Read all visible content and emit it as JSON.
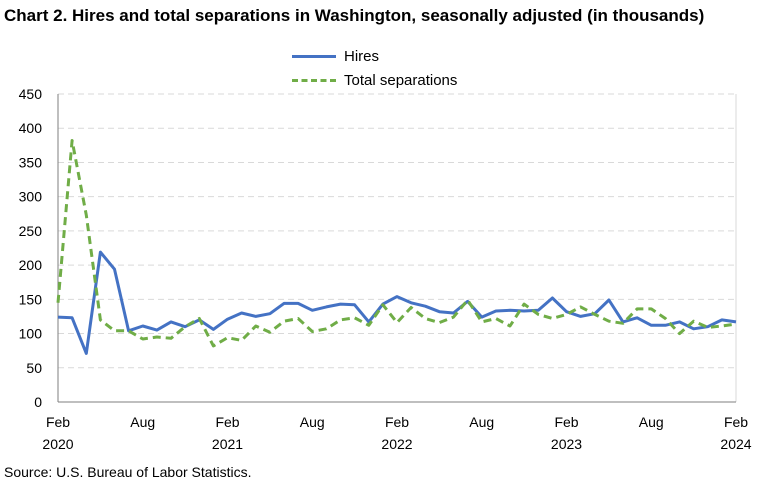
{
  "chart_data": {
    "type": "line",
    "title": "Chart 2. Hires and total separations in Washington, seasonally adjusted (in thousands)",
    "xlabel": "",
    "ylabel": "",
    "ylim": [
      0,
      450
    ],
    "yticks": [
      0,
      50,
      100,
      150,
      200,
      250,
      300,
      350,
      400,
      450
    ],
    "grid": true,
    "legend_position": "top-center",
    "x_tick_labels": [
      {
        "month": "Feb",
        "year": "2020"
      },
      {
        "month": "Aug",
        "year": ""
      },
      {
        "month": "Feb",
        "year": "2021"
      },
      {
        "month": "Aug",
        "year": ""
      },
      {
        "month": "Feb",
        "year": "2022"
      },
      {
        "month": "Aug",
        "year": ""
      },
      {
        "month": "Feb",
        "year": "2023"
      },
      {
        "month": "Aug",
        "year": ""
      },
      {
        "month": "Feb",
        "year": "2024"
      }
    ],
    "x": [
      "2020-02",
      "2020-03",
      "2020-04",
      "2020-05",
      "2020-06",
      "2020-07",
      "2020-08",
      "2020-09",
      "2020-10",
      "2020-11",
      "2020-12",
      "2021-01",
      "2021-02",
      "2021-03",
      "2021-04",
      "2021-05",
      "2021-06",
      "2021-07",
      "2021-08",
      "2021-09",
      "2021-10",
      "2021-11",
      "2021-12",
      "2022-01",
      "2022-02",
      "2022-03",
      "2022-04",
      "2022-05",
      "2022-06",
      "2022-07",
      "2022-08",
      "2022-09",
      "2022-10",
      "2022-11",
      "2022-12",
      "2023-01",
      "2023-02",
      "2023-03",
      "2023-04",
      "2023-05",
      "2023-06",
      "2023-07",
      "2023-08",
      "2023-09",
      "2023-10",
      "2023-11",
      "2023-12",
      "2024-01",
      "2024-02"
    ],
    "series": [
      {
        "name": "Hires",
        "color": "#4472c4",
        "style": "solid",
        "values": [
          124,
          123,
          71,
          219,
          194,
          104,
          111,
          105,
          117,
          110,
          120,
          106,
          121,
          130,
          125,
          129,
          144,
          144,
          134,
          139,
          143,
          142,
          117,
          143,
          154,
          145,
          140,
          132,
          130,
          147,
          124,
          133,
          134,
          133,
          134,
          152,
          132,
          125,
          129,
          149,
          117,
          123,
          112,
          112,
          117,
          107,
          110,
          120,
          117
        ]
      },
      {
        "name": "Total separations",
        "color": "#70ad47",
        "style": "dashed",
        "values": [
          145,
          382,
          273,
          120,
          104,
          104,
          92,
          95,
          93,
          110,
          122,
          82,
          94,
          90,
          111,
          102,
          118,
          122,
          103,
          107,
          120,
          123,
          112,
          142,
          116,
          138,
          122,
          116,
          124,
          149,
          117,
          122,
          111,
          143,
          128,
          122,
          128,
          139,
          128,
          118,
          115,
          136,
          136,
          122,
          100,
          118,
          109,
          111,
          114
        ]
      }
    ]
  },
  "source": "Source: U.S. Bureau of Labor Statistics."
}
